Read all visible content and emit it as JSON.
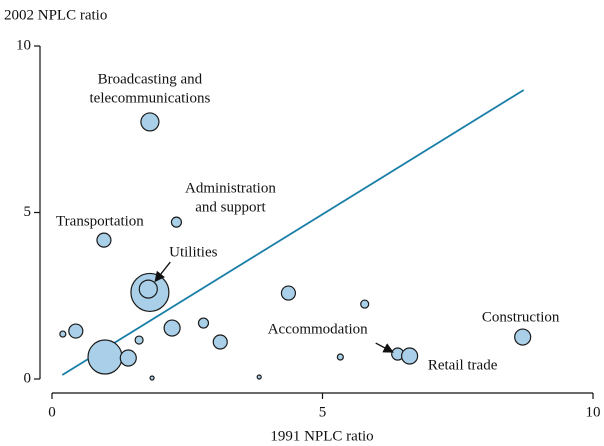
{
  "chart_data": {
    "type": "scatter",
    "y_label": "2002 NPLC ratio",
    "x_label": "1991 NPLC ratio",
    "xlim": [
      0,
      10
    ],
    "ylim": [
      0,
      10
    ],
    "xticks": [
      0,
      5,
      10
    ],
    "yticks": [
      0,
      5,
      10
    ],
    "color": "#a9d0e8",
    "line_color": "#1a7fa8",
    "x": [
      1.81,
      2.3,
      0.96,
      1.81,
      1.78,
      0.2,
      0.44,
      1.61,
      0.98,
      1.41,
      1.85,
      2.22,
      2.8,
      3.11,
      3.83,
      4.37,
      5.33,
      5.78,
      6.39,
      6.61,
      8.7
    ],
    "y": [
      7.72,
      4.71,
      4.17,
      2.6,
      2.7,
      1.35,
      1.44,
      1.17,
      0.66,
      0.63,
      0.03,
      1.53,
      1.68,
      1.11,
      0.06,
      2.58,
      0.66,
      2.25,
      0.75,
      0.69,
      1.26
    ],
    "sizes": [
      81,
      25,
      49,
      361,
      81,
      9,
      49,
      16,
      289,
      64,
      4,
      64,
      25,
      49,
      4,
      49,
      9,
      16,
      36,
      64,
      64
    ],
    "labels": [
      [
        "Broadcasting and",
        "telecommunications"
      ],
      [
        "Administration",
        "and support"
      ],
      [
        "Transportation"
      ],
      null,
      [
        "Utilities"
      ],
      null,
      null,
      null,
      null,
      null,
      null,
      null,
      null,
      null,
      null,
      null,
      null,
      null,
      [
        "Accommodation"
      ],
      [
        "Retail trade"
      ],
      [
        "Construction"
      ]
    ],
    "fit_line": {
      "x": [
        0.19,
        8.72
      ],
      "y": [
        0.12,
        8.68
      ]
    }
  }
}
